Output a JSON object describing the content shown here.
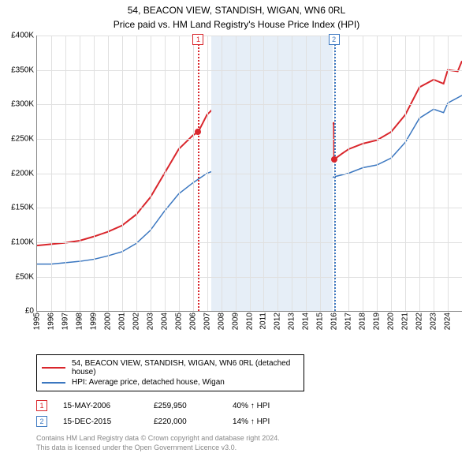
{
  "title": "54, BEACON VIEW, STANDISH, WIGAN, WN6 0RL",
  "subtitle": "Price paid vs. HM Land Registry's House Price Index (HPI)",
  "chart": {
    "type": "line",
    "background_color": "#ffffff",
    "grid_color": "#e0e0e0",
    "ylim": [
      0,
      400000
    ],
    "ytick_step": 50000,
    "ytick_labels": [
      "£0",
      "£50K",
      "£100K",
      "£150K",
      "£200K",
      "£250K",
      "£300K",
      "£350K",
      "£400K"
    ],
    "xlim": [
      1995,
      2025
    ],
    "xtick_step": 1,
    "xtick_labels": [
      "1995",
      "1996",
      "1997",
      "1998",
      "1999",
      "2000",
      "2001",
      "2002",
      "2003",
      "2004",
      "2005",
      "2006",
      "2007",
      "2008",
      "2009",
      "2010",
      "2011",
      "2012",
      "2013",
      "2014",
      "2015",
      "2016",
      "2017",
      "2018",
      "2019",
      "2020",
      "2021",
      "2022",
      "2023",
      "2024"
    ],
    "shaded_band": {
      "from": 2007.3,
      "to": 2015.9,
      "color": "#e6eef7"
    },
    "markers": [
      {
        "id": "1",
        "x": 2006.38,
        "color": "#d9262c"
      },
      {
        "id": "2",
        "x": 2015.96,
        "color": "#3b77c0"
      }
    ],
    "series": [
      {
        "name": "54, BEACON VIEW, STANDISH, WIGAN, WN6 0RL (detached house)",
        "color": "#d9262c",
        "line_width": 2,
        "data": [
          [
            1995,
            95000
          ],
          [
            1996,
            97000
          ],
          [
            1997,
            99000
          ],
          [
            1998,
            102000
          ],
          [
            1999,
            108000
          ],
          [
            2000,
            115000
          ],
          [
            2001,
            124000
          ],
          [
            2002,
            140000
          ],
          [
            2003,
            165000
          ],
          [
            2004,
            200000
          ],
          [
            2005,
            235000
          ],
          [
            2006,
            255000
          ],
          [
            2006.38,
            259950
          ],
          [
            2007,
            285000
          ],
          [
            2007.6,
            297000
          ],
          [
            2008,
            278000
          ],
          [
            2008.5,
            255000
          ],
          [
            2009,
            238000
          ],
          [
            2010,
            248000
          ],
          [
            2011,
            232000
          ],
          [
            2012,
            230000
          ],
          [
            2013,
            232000
          ],
          [
            2014,
            248000
          ],
          [
            2015,
            262000
          ],
          [
            2015.95,
            273000
          ],
          [
            2015.97,
            220000
          ],
          [
            2016.5,
            228000
          ],
          [
            2017,
            235000
          ],
          [
            2018,
            243000
          ],
          [
            2019,
            248000
          ],
          [
            2020,
            260000
          ],
          [
            2021,
            285000
          ],
          [
            2022,
            325000
          ],
          [
            2023,
            336000
          ],
          [
            2023.7,
            330000
          ],
          [
            2024,
            350000
          ],
          [
            2024.7,
            348000
          ],
          [
            2025,
            363000
          ]
        ]
      },
      {
        "name": "HPI: Average price, detached house, Wigan",
        "color": "#3b77c0",
        "line_width": 1.5,
        "data": [
          [
            1995,
            68000
          ],
          [
            1996,
            68000
          ],
          [
            1997,
            70000
          ],
          [
            1998,
            72000
          ],
          [
            1999,
            75000
          ],
          [
            2000,
            80000
          ],
          [
            2001,
            86000
          ],
          [
            2002,
            98000
          ],
          [
            2003,
            117000
          ],
          [
            2004,
            145000
          ],
          [
            2005,
            170000
          ],
          [
            2006,
            186000
          ],
          [
            2007,
            200000
          ],
          [
            2007.8,
            206000
          ],
          [
            2008,
            197000
          ],
          [
            2008.7,
            178000
          ],
          [
            2009,
            172000
          ],
          [
            2010,
            180000
          ],
          [
            2011,
            170000
          ],
          [
            2012,
            168000
          ],
          [
            2013,
            170000
          ],
          [
            2014,
            178000
          ],
          [
            2015,
            186000
          ],
          [
            2016,
            195000
          ],
          [
            2017,
            200000
          ],
          [
            2018,
            208000
          ],
          [
            2019,
            212000
          ],
          [
            2020,
            222000
          ],
          [
            2021,
            245000
          ],
          [
            2022,
            280000
          ],
          [
            2023,
            293000
          ],
          [
            2023.7,
            288000
          ],
          [
            2024,
            302000
          ],
          [
            2025,
            313000
          ]
        ]
      }
    ],
    "points": [
      {
        "x": 2006.38,
        "y": 259950,
        "color": "#d9262c"
      },
      {
        "x": 2015.96,
        "y": 220000,
        "color": "#d9262c"
      }
    ]
  },
  "legend": {
    "items": [
      {
        "label": "54, BEACON VIEW, STANDISH, WIGAN, WN6 0RL (detached house)",
        "color": "#d9262c"
      },
      {
        "label": "HPI: Average price, detached house, Wigan",
        "color": "#3b77c0"
      }
    ]
  },
  "transactions": [
    {
      "id": "1",
      "marker_color": "#d9262c",
      "date": "15-MAY-2006",
      "price": "£259,950",
      "delta": "40% ↑ HPI"
    },
    {
      "id": "2",
      "marker_color": "#3b77c0",
      "date": "15-DEC-2015",
      "price": "£220,000",
      "delta": "14% ↑ HPI"
    }
  ],
  "footer1": "Contains HM Land Registry data © Crown copyright and database right 2024.",
  "footer2": "This data is licensed under the Open Government Licence v3.0."
}
